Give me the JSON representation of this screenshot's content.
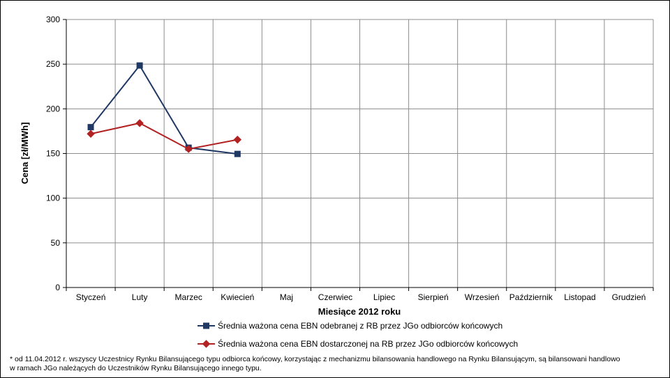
{
  "chart_data": {
    "type": "line",
    "categories": [
      "Styczeń",
      "Luty",
      "Marzec",
      "Kwiecień",
      "Maj",
      "Czerwiec",
      "Lipiec",
      "Sierpień",
      "Wrzesień",
      "Październik",
      "Listopad",
      "Grudzień"
    ],
    "series": [
      {
        "name": "Średnia ważona cena EBN odebranej z RB przez JGo odbiorców końcowych",
        "color": "#1f3864",
        "marker": "square",
        "values": [
          179.5,
          248.5,
          156.5,
          149.5,
          null,
          null,
          null,
          null,
          null,
          null,
          null,
          null
        ]
      },
      {
        "name": "Średnia ważona cena EBN dostarczonej na RB przez JGo odbiorców końcowych",
        "color": "#b22222",
        "marker": "diamond",
        "values": [
          172,
          184,
          155,
          165.5,
          null,
          null,
          null,
          null,
          null,
          null,
          null,
          null
        ]
      }
    ],
    "xlabel": "Miesiące 2012 roku",
    "ylabel": "Cena [zł/MWh]",
    "ylim": [
      0,
      300
    ],
    "yticks": [
      0,
      50,
      100,
      150,
      200,
      250,
      300
    ],
    "grid": true,
    "legend": "bottom"
  },
  "footnote": {
    "line1": "* od 11.04.2012 r. wszyscy Uczestnicy Rynku Bilansującego typu odbiorca końcowy, korzystając z mechanizmu bilansowania handlowego  na Rynku Bilansującym, są bilansowani handlowo",
    "line2": "  w ramach JGo należących do Uczestników  Rynku Bilansującego innego typu."
  }
}
